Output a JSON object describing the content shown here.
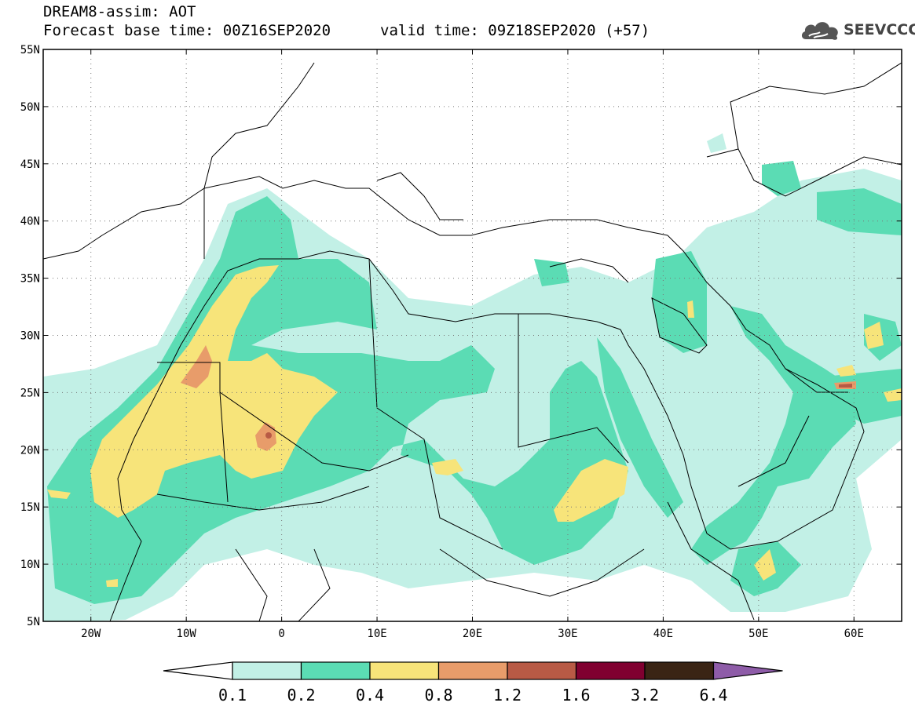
{
  "header": {
    "title_line1": "DREAM8-assim: AOT",
    "title_line2": "Forecast base time: 00Z16SEP2020",
    "valid_time": "valid time: 09Z18SEP2020 (+57)"
  },
  "logo": {
    "text": "SEEVCCC",
    "icon": "cloud-logo-icon"
  },
  "map": {
    "lon_range": [
      -25,
      65
    ],
    "lat_range": [
      5,
      55
    ],
    "y_ticks": [
      "55N",
      "50N",
      "45N",
      "40N",
      "35N",
      "30N",
      "25N",
      "20N",
      "15N",
      "10N",
      "5N"
    ],
    "x_ticks": [
      "20W",
      "10W",
      "0",
      "10E",
      "20E",
      "30E",
      "40E",
      "50E",
      "60E"
    ],
    "grid": "dotted"
  },
  "colorbar": {
    "labels": [
      "0.1",
      "0.2",
      "0.4",
      "0.8",
      "1.2",
      "1.6",
      "3.2",
      "6.4"
    ],
    "colors": [
      "#c2f0e6",
      "#5bdcb4",
      "#f7e47a",
      "#e89c6a",
      "#b85a45",
      "#800030",
      "#3a2414",
      "#8e5ca8"
    ],
    "under_color": "#ffffff",
    "over_color": "#8e5ca8"
  }
}
